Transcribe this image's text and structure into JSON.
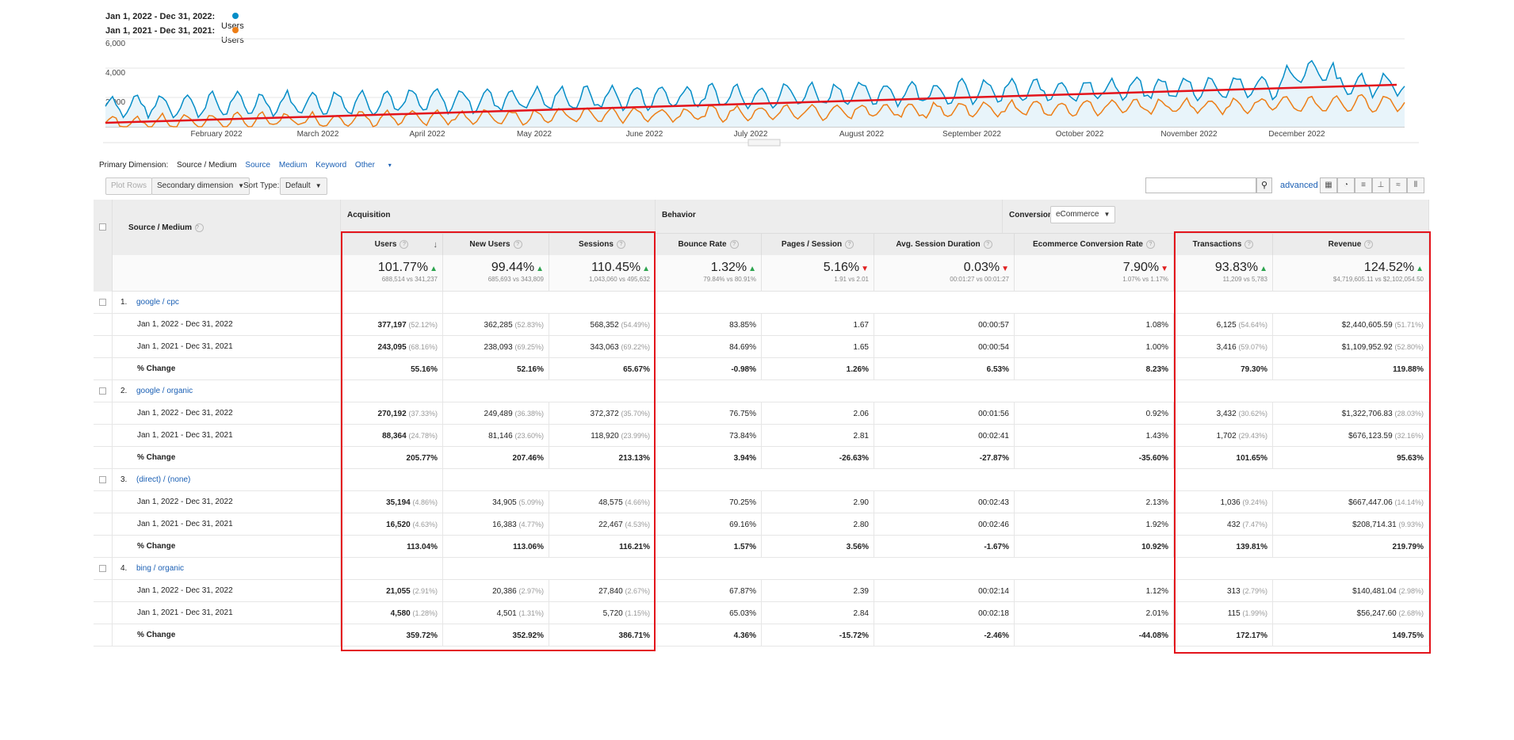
{
  "chart": {
    "legend": [
      {
        "range": "Jan 1, 2022 - Dec 31, 2022:",
        "metric": "Users",
        "color": "#058dc7"
      },
      {
        "range": "Jan 1, 2021 - Dec 31, 2021:",
        "metric": "Users",
        "color": "#ed7e17"
      }
    ],
    "trend_color": "#e3131b",
    "y_ticks": [
      "6,000",
      "4,000",
      "2,000"
    ],
    "x_ticks": [
      "February 2022",
      "March 2022",
      "April 2022",
      "May 2022",
      "June 2022",
      "July 2022",
      "August 2022",
      "September 2022",
      "October 2022",
      "November 2022",
      "December 2022"
    ]
  },
  "primary_dimension": {
    "label": "Primary Dimension:",
    "current": "Source / Medium",
    "options": [
      "Source",
      "Medium",
      "Keyword",
      "Other"
    ]
  },
  "toolbar": {
    "plot_rows": "Plot Rows",
    "secondary_dimension": "Secondary dimension",
    "sort_type_label": "Sort Type:",
    "sort_type_value": "Default",
    "advanced": "advanced",
    "search_placeholder": ""
  },
  "table": {
    "dimension_header": "Source / Medium",
    "groups": {
      "acquisition": "Acquisition",
      "behavior": "Behavior",
      "conversions": "Conversions",
      "conversions_select": "eCommerce"
    },
    "columns": [
      "Users",
      "New Users",
      "Sessions",
      "Bounce Rate",
      "Pages / Session",
      "Avg. Session Duration",
      "Ecommerce Conversion Rate",
      "Transactions",
      "Revenue"
    ],
    "totals": [
      {
        "big": "101.77%",
        "dir": "up",
        "small": "688,514 vs 341,237"
      },
      {
        "big": "99.44%",
        "dir": "up",
        "small": "685,693 vs 343,809"
      },
      {
        "big": "110.45%",
        "dir": "up",
        "small": "1,043,060 vs 495,632"
      },
      {
        "big": "1.32%",
        "dir": "up",
        "small": "79.84% vs 80.91%"
      },
      {
        "big": "5.16%",
        "dir": "down",
        "small": "1.91 vs 2.01"
      },
      {
        "big": "0.03%",
        "dir": "down",
        "small": "00:01:27 vs 00:01:27"
      },
      {
        "big": "7.90%",
        "dir": "down",
        "small": "1.07% vs 1.17%"
      },
      {
        "big": "93.83%",
        "dir": "up",
        "small": "11,209 vs 5,783"
      },
      {
        "big": "124.52%",
        "dir": "up",
        "small": "$4,719,605.11 vs $2,102,054.50"
      }
    ],
    "sources": [
      {
        "num": "1.",
        "name": "google / cpc",
        "rows": [
          {
            "label": "Jan 1, 2022 - Dec 31, 2022",
            "cells": [
              [
                "377,197",
                "(52.12%)"
              ],
              [
                "362,285",
                "(52.83%)"
              ],
              [
                "568,352",
                "(54.49%)"
              ],
              [
                "83.85%",
                ""
              ],
              [
                "1.67",
                ""
              ],
              [
                "00:00:57",
                ""
              ],
              [
                "1.08%",
                ""
              ],
              [
                "6,125",
                "(54.64%)"
              ],
              [
                "$2,440,605.59",
                "(51.71%)"
              ]
            ]
          },
          {
            "label": "Jan 1, 2021 - Dec 31, 2021",
            "cells": [
              [
                "243,095",
                "(68.16%)"
              ],
              [
                "238,093",
                "(69.25%)"
              ],
              [
                "343,063",
                "(69.22%)"
              ],
              [
                "84.69%",
                ""
              ],
              [
                "1.65",
                ""
              ],
              [
                "00:00:54",
                ""
              ],
              [
                "1.00%",
                ""
              ],
              [
                "3,416",
                "(59.07%)"
              ],
              [
                "$1,109,952.92",
                "(52.80%)"
              ]
            ]
          },
          {
            "label": "% Change",
            "cells": [
              [
                "55.16%",
                ""
              ],
              [
                "52.16%",
                ""
              ],
              [
                "65.67%",
                ""
              ],
              [
                "-0.98%",
                ""
              ],
              [
                "1.26%",
                ""
              ],
              [
                "6.53%",
                ""
              ],
              [
                "8.23%",
                ""
              ],
              [
                "79.30%",
                ""
              ],
              [
                "119.88%",
                ""
              ]
            ]
          }
        ]
      },
      {
        "num": "2.",
        "name": "google / organic",
        "rows": [
          {
            "label": "Jan 1, 2022 - Dec 31, 2022",
            "cells": [
              [
                "270,192",
                "(37.33%)"
              ],
              [
                "249,489",
                "(36.38%)"
              ],
              [
                "372,372",
                "(35.70%)"
              ],
              [
                "76.75%",
                ""
              ],
              [
                "2.06",
                ""
              ],
              [
                "00:01:56",
                ""
              ],
              [
                "0.92%",
                ""
              ],
              [
                "3,432",
                "(30.62%)"
              ],
              [
                "$1,322,706.83",
                "(28.03%)"
              ]
            ]
          },
          {
            "label": "Jan 1, 2021 - Dec 31, 2021",
            "cells": [
              [
                "88,364",
                "(24.78%)"
              ],
              [
                "81,146",
                "(23.60%)"
              ],
              [
                "118,920",
                "(23.99%)"
              ],
              [
                "73.84%",
                ""
              ],
              [
                "2.81",
                ""
              ],
              [
                "00:02:41",
                ""
              ],
              [
                "1.43%",
                ""
              ],
              [
                "1,702",
                "(29.43%)"
              ],
              [
                "$676,123.59",
                "(32.16%)"
              ]
            ]
          },
          {
            "label": "% Change",
            "cells": [
              [
                "205.77%",
                ""
              ],
              [
                "207.46%",
                ""
              ],
              [
                "213.13%",
                ""
              ],
              [
                "3.94%",
                ""
              ],
              [
                "-26.63%",
                ""
              ],
              [
                "-27.87%",
                ""
              ],
              [
                "-35.60%",
                ""
              ],
              [
                "101.65%",
                ""
              ],
              [
                "95.63%",
                ""
              ]
            ]
          }
        ]
      },
      {
        "num": "3.",
        "name": "(direct) / (none)",
        "rows": [
          {
            "label": "Jan 1, 2022 - Dec 31, 2022",
            "cells": [
              [
                "35,194",
                "(4.86%)"
              ],
              [
                "34,905",
                "(5.09%)"
              ],
              [
                "48,575",
                "(4.66%)"
              ],
              [
                "70.25%",
                ""
              ],
              [
                "2.90",
                ""
              ],
              [
                "00:02:43",
                ""
              ],
              [
                "2.13%",
                ""
              ],
              [
                "1,036",
                "(9.24%)"
              ],
              [
                "$667,447.06",
                "(14.14%)"
              ]
            ]
          },
          {
            "label": "Jan 1, 2021 - Dec 31, 2021",
            "cells": [
              [
                "16,520",
                "(4.63%)"
              ],
              [
                "16,383",
                "(4.77%)"
              ],
              [
                "22,467",
                "(4.53%)"
              ],
              [
                "69.16%",
                ""
              ],
              [
                "2.80",
                ""
              ],
              [
                "00:02:46",
                ""
              ],
              [
                "1.92%",
                ""
              ],
              [
                "432",
                "(7.47%)"
              ],
              [
                "$208,714.31",
                "(9.93%)"
              ]
            ]
          },
          {
            "label": "% Change",
            "cells": [
              [
                "113.04%",
                ""
              ],
              [
                "113.06%",
                ""
              ],
              [
                "116.21%",
                ""
              ],
              [
                "1.57%",
                ""
              ],
              [
                "3.56%",
                ""
              ],
              [
                "-1.67%",
                ""
              ],
              [
                "10.92%",
                ""
              ],
              [
                "139.81%",
                ""
              ],
              [
                "219.79%",
                ""
              ]
            ]
          }
        ]
      },
      {
        "num": "4.",
        "name": "bing / organic",
        "rows": [
          {
            "label": "Jan 1, 2022 - Dec 31, 2022",
            "cells": [
              [
                "21,055",
                "(2.91%)"
              ],
              [
                "20,386",
                "(2.97%)"
              ],
              [
                "27,840",
                "(2.67%)"
              ],
              [
                "67.87%",
                ""
              ],
              [
                "2.39",
                ""
              ],
              [
                "00:02:14",
                ""
              ],
              [
                "1.12%",
                ""
              ],
              [
                "313",
                "(2.79%)"
              ],
              [
                "$140,481.04",
                "(2.98%)"
              ]
            ]
          },
          {
            "label": "Jan 1, 2021 - Dec 31, 2021",
            "cells": [
              [
                "4,580",
                "(1.28%)"
              ],
              [
                "4,501",
                "(1.31%)"
              ],
              [
                "5,720",
                "(1.15%)"
              ],
              [
                "65.03%",
                ""
              ],
              [
                "2.84",
                ""
              ],
              [
                "00:02:18",
                ""
              ],
              [
                "2.01%",
                ""
              ],
              [
                "115",
                "(1.99%)"
              ],
              [
                "$56,247.60",
                "(2.68%)"
              ]
            ]
          },
          {
            "label": "% Change",
            "cells": [
              [
                "359.72%",
                ""
              ],
              [
                "352.92%",
                ""
              ],
              [
                "386.71%",
                ""
              ],
              [
                "4.36%",
                ""
              ],
              [
                "-15.72%",
                ""
              ],
              [
                "-2.46%",
                ""
              ],
              [
                "-44.08%",
                ""
              ],
              [
                "172.17%",
                ""
              ],
              [
                "149.75%",
                ""
              ]
            ]
          }
        ]
      }
    ]
  }
}
